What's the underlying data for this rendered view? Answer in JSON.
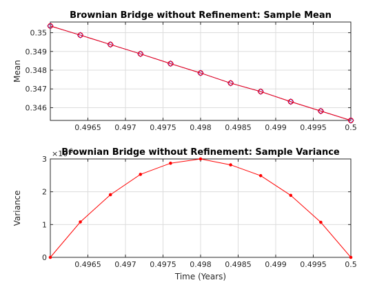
{
  "chart_data": [
    {
      "type": "line",
      "title": "Brownian Bridge without Refinement: Sample Mean",
      "xlabel": "",
      "ylabel": "Mean",
      "xlim": [
        0.496,
        0.5
      ],
      "ylim": [
        0.34532,
        0.35057
      ],
      "xticks": [
        0.4965,
        0.497,
        0.4975,
        0.498,
        0.4985,
        0.499,
        0.4995,
        0.5
      ],
      "xtick_labels": [
        "0.4965",
        "0.497",
        "0.4975",
        "0.498",
        "0.4985",
        "0.499",
        "0.4995",
        "0.5"
      ],
      "yticks": [
        0.346,
        0.347,
        0.348,
        0.349,
        0.35
      ],
      "ytick_labels": [
        "0.346",
        "0.347",
        "0.348",
        "0.349",
        "0.35"
      ],
      "grid": true,
      "series": [
        {
          "color": "#0000ff",
          "marker": "diamond",
          "x": [
            0.496,
            0.4964,
            0.4968,
            0.4972,
            0.4976,
            0.498,
            0.4984,
            0.4988,
            0.4992,
            0.4996,
            0.5
          ],
          "y": [
            0.35036,
            0.34987,
            0.34937,
            0.34887,
            0.34835,
            0.34785,
            0.34731,
            0.34686,
            0.34632,
            0.34582,
            0.34532
          ]
        },
        {
          "color": "#ff0000",
          "marker": "circle",
          "x": [
            0.496,
            0.4964,
            0.4968,
            0.4972,
            0.4976,
            0.498,
            0.4984,
            0.4988,
            0.4992,
            0.4996,
            0.5
          ],
          "y": [
            0.35036,
            0.34987,
            0.34937,
            0.34887,
            0.34835,
            0.34785,
            0.34731,
            0.34686,
            0.34632,
            0.34582,
            0.34532
          ]
        }
      ]
    },
    {
      "type": "line",
      "title": "Brownian Bridge without Refinement: Sample Variance",
      "xlabel": "Time (Years)",
      "ylabel": "Variance",
      "y_exponent_label": "×10",
      "y_exponent_power": "-6",
      "xlim": [
        0.496,
        0.5
      ],
      "ylim": [
        0,
        3
      ],
      "xticks": [
        0.4965,
        0.497,
        0.4975,
        0.498,
        0.4985,
        0.499,
        0.4995,
        0.5
      ],
      "xtick_labels": [
        "0.4965",
        "0.497",
        "0.4975",
        "0.498",
        "0.4985",
        "0.499",
        "0.4995",
        "0.5"
      ],
      "yticks": [
        0,
        1,
        2,
        3
      ],
      "ytick_labels": [
        "0",
        "1",
        "2",
        "3"
      ],
      "grid": true,
      "series": [
        {
          "color": "#ff0000",
          "marker": "dot",
          "x": [
            0.496,
            0.4964,
            0.4968,
            0.4972,
            0.4976,
            0.498,
            0.4984,
            0.4988,
            0.4992,
            0.4996,
            0.5
          ],
          "y": [
            0,
            1.08,
            1.91,
            2.53,
            2.87,
            3.0,
            2.82,
            2.49,
            1.89,
            1.07,
            0
          ]
        }
      ]
    }
  ]
}
